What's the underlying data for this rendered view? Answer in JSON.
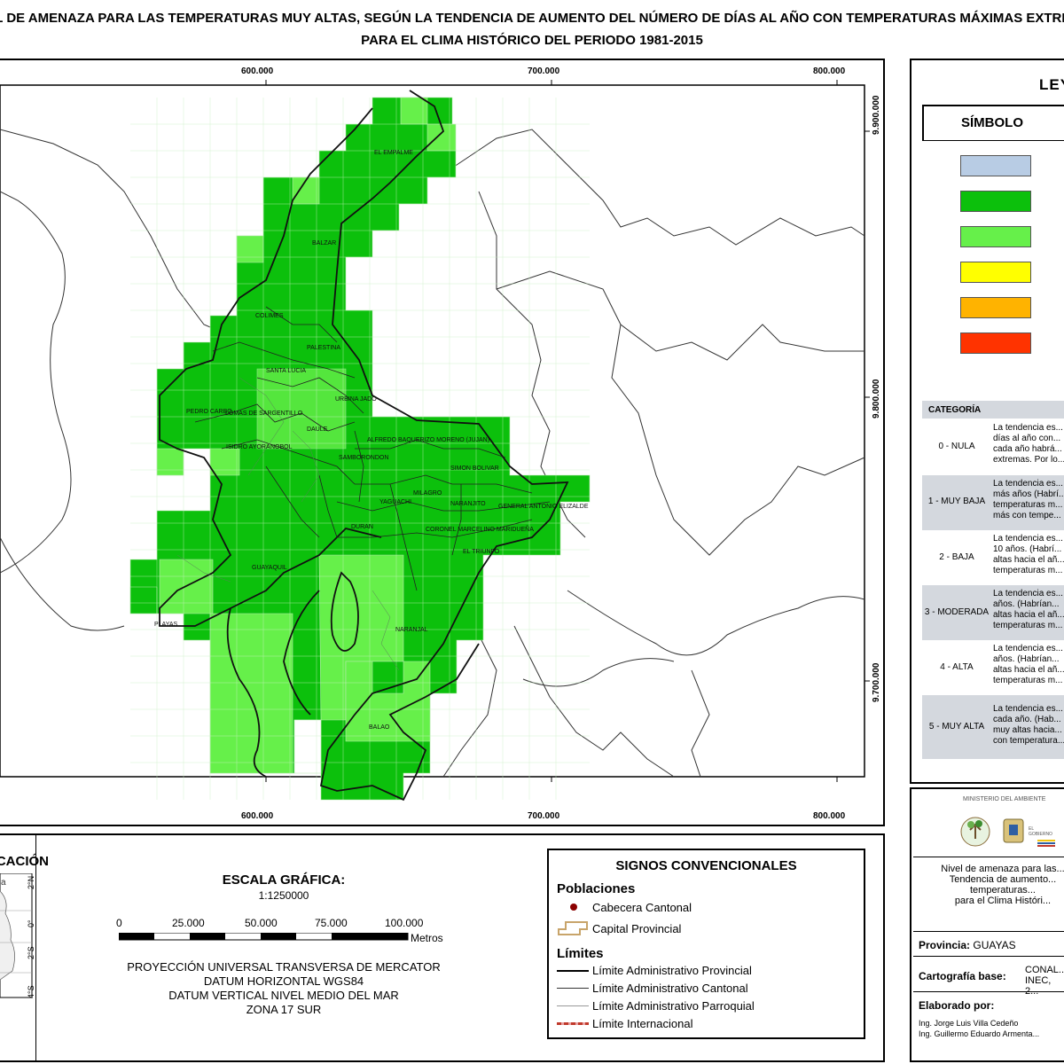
{
  "title": {
    "line1": "NIVEL DE AMENAZA PARA LAS TEMPERATURAS MUY ALTAS, SEGÚN LA TENDENCIA DE AUMENTO DEL NÚMERO DE DÍAS AL AÑO CON TEMPERATURAS MÁXIMAS EXTREMAS",
    "line2": "PARA EL CLIMA HISTÓRICO DEL PERIODO 1981-2015"
  },
  "map": {
    "x_ticks": [
      "600.000",
      "700.000",
      "800.000"
    ],
    "y_ticks": [
      "9.900.000",
      "9.800.000",
      "9.700.000"
    ],
    "places": [
      "EL EMPALME",
      "BALZAR",
      "COLIMES",
      "PALESTINA",
      "SANTA LUCIA",
      "URBINA JADO",
      "PEDRO CARBO",
      "LOMAS DE SARGENTILLO",
      "DAULE",
      "ISIDRO AYORA",
      "NOBOL",
      "ALFREDO BAQUERIZO MORENO (JUJAN)",
      "SAMBORONDON",
      "SIMON BOLIVAR",
      "MILAGRO",
      "YAGUACHI",
      "NARANJITO",
      "GENERAL ANTONIO ELIZALDE",
      "DURAN",
      "CORONEL MARCELINO MARIDUEÑA",
      "EL TRIUNFO",
      "GUAYAQUIL",
      "PLAYAS",
      "NARANJAL",
      "BALAO"
    ]
  },
  "legend": {
    "title": "LEYENDA",
    "symbol_header": "SÍMBOLO",
    "category_header": "CATEGORÍA",
    "colors": [
      "#b8cce4",
      "#0cc00c",
      "#66f04a",
      "#ffff00",
      "#ffb300",
      "#ff3300"
    ],
    "categories": [
      {
        "label": "0 - NULA",
        "desc": [
          "La tendencia es...",
          "días al año con...",
          "cada año habrá...",
          "extremas. Por lo..."
        ]
      },
      {
        "label": "1 - MUY BAJA",
        "desc": [
          "La tendencia es...",
          "más años (Habrí...",
          "temperaturas m...",
          "más con tempe..."
        ]
      },
      {
        "label": "2 - BAJA",
        "desc": [
          "La tendencia es...",
          "10 años. (Habrí...",
          "altas hacia el añ...",
          "temperaturas m..."
        ]
      },
      {
        "label": "3 - MODERADA",
        "desc": [
          "La tendencia es...",
          "años. (Habrían...",
          "altas hacia el añ...",
          "temperaturas m..."
        ]
      },
      {
        "label": "4 - ALTA",
        "desc": [
          "La tendencia es...",
          "años. (Habrían...",
          "altas hacia el añ...",
          "temperaturas m..."
        ]
      },
      {
        "label": "5 - MUY ALTA",
        "desc": [
          "La tendencia es...",
          "cada año. (Hab...",
          "muy altas hacia...",
          "con temperatura..."
        ]
      }
    ]
  },
  "location": {
    "title": "UBICACIÓN",
    "lat_ticks": [
      "2°N",
      "0°",
      "2°S",
      "4°S"
    ]
  },
  "scale": {
    "title": "ESCALA GRÁFICA:",
    "ratio": "1:1250000",
    "ticks": [
      "0",
      "25.000",
      "50.000",
      "75.000",
      "100.000"
    ],
    "unit": "Metros",
    "projection": [
      "PROYECCIÓN UNIVERSAL TRANSVERSA DE MERCATOR",
      "DATUM HORIZONTAL WGS84",
      "DATUM VERTICAL NIVEL MEDIO DEL MAR",
      "ZONA 17 SUR"
    ]
  },
  "conventional_signs": {
    "title": "SIGNOS CONVENCIONALES",
    "populations_header": "Poblaciones",
    "cabecera": "Cabecera Cantonal",
    "capital": "Capital Provincial",
    "limits_header": "Límites",
    "limit_provincial": "Límite Administrativo Provincial",
    "limit_cantonal": "Límite Administrativo Cantonal",
    "limit_parroquial": "Límite Administrativo Parroquial",
    "limit_internacional": "Límite Internacional"
  },
  "info": {
    "ministry": "MINISTERIO DEL AMBIENTE",
    "description": [
      "Nivel de amenaza para las...",
      "Tendencia de aumento...",
      "temperaturas...",
      "para el Clima Históri..."
    ],
    "province_label": "Provincia:",
    "province_value": "GUAYAS",
    "base_label": "Cartografía base:",
    "base_value": [
      "CONAL...",
      "INEC, 2..."
    ],
    "made_by_label": "Elaborado por:",
    "authors": [
      "Ing. Jorge Luis Villa Cedeño",
      "Ing. Guillermo Eduardo Armenta..."
    ]
  }
}
